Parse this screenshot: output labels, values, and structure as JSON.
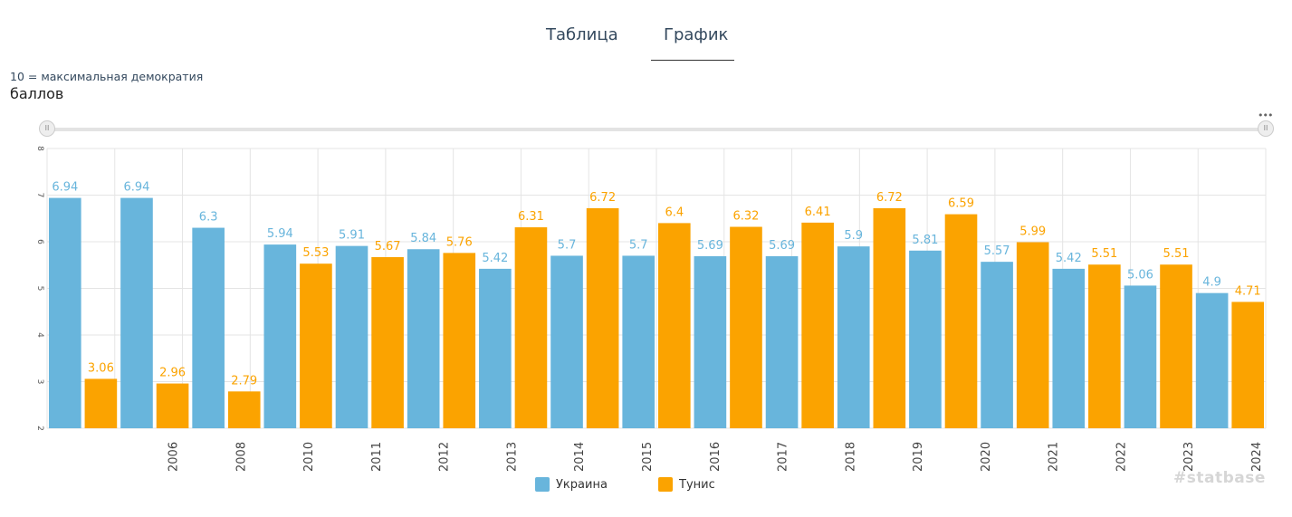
{
  "tabs": {
    "table": "Таблица",
    "chart": "График"
  },
  "chart_meta": {
    "subtitle": "10 = максимальная демократия",
    "unit_label": "баллов"
  },
  "slider": {
    "left_handle": "II",
    "right_handle": "II"
  },
  "menu": {
    "dots": "•••"
  },
  "legend": {
    "ukraine": "Украина",
    "tunisia": "Тунис"
  },
  "watermark": "#statbase",
  "colors": {
    "ukraine": "#68b5dc",
    "tunisia": "#fba300"
  },
  "chart_data": {
    "type": "bar",
    "categories": [
      "",
      "2006",
      "2008",
      "2010",
      "2011",
      "2012",
      "2013",
      "2014",
      "2015",
      "2016",
      "2017",
      "2018",
      "2019",
      "2020",
      "2021",
      "2022",
      "2023",
      "2024"
    ],
    "bars": [
      {
        "series": "Украина",
        "value": 6.94,
        "label": "6.94"
      },
      {
        "series": "Тунис",
        "value": 3.06,
        "label": "3.06"
      },
      {
        "series": "Украина",
        "value": 6.94,
        "label": "6.94"
      },
      {
        "series": "Тунис",
        "value": 2.96,
        "label": "2.96"
      },
      {
        "series": "Украина",
        "value": 6.3,
        "label": "6.3"
      },
      {
        "series": "Тунис",
        "value": 2.79,
        "label": "2.79"
      },
      {
        "series": "Украина",
        "value": 5.94,
        "label": "5.94"
      },
      {
        "series": "Тунис",
        "value": 5.53,
        "label": "5.53"
      },
      {
        "series": "Украина",
        "value": 5.91,
        "label": "5.91"
      },
      {
        "series": "Тунис",
        "value": 5.67,
        "label": "5.67"
      },
      {
        "series": "Украина",
        "value": 5.84,
        "label": "5.84"
      },
      {
        "series": "Тунис",
        "value": 5.76,
        "label": "5.76"
      },
      {
        "series": "Украина",
        "value": 5.42,
        "label": "5.42"
      },
      {
        "series": "Тунис",
        "value": 6.31,
        "label": "6.31"
      },
      {
        "series": "Украина",
        "value": 5.7,
        "label": "5.7"
      },
      {
        "series": "Тунис",
        "value": 6.72,
        "label": "6.72"
      },
      {
        "series": "Украина",
        "value": 5.7,
        "label": "5.7"
      },
      {
        "series": "Тунис",
        "value": 6.4,
        "label": "6.4"
      },
      {
        "series": "Украина",
        "value": 5.69,
        "label": "5.69"
      },
      {
        "series": "Тунис",
        "value": 6.32,
        "label": "6.32"
      },
      {
        "series": "Украина",
        "value": 5.69,
        "label": "5.69"
      },
      {
        "series": "Тунис",
        "value": 6.41,
        "label": "6.41"
      },
      {
        "series": "Украина",
        "value": 5.9,
        "label": "5.9"
      },
      {
        "series": "Тунис",
        "value": 6.72,
        "label": "6.72"
      },
      {
        "series": "Украина",
        "value": 5.81,
        "label": "5.81"
      },
      {
        "series": "Тунис",
        "value": 6.59,
        "label": "6.59"
      },
      {
        "series": "Украина",
        "value": 5.57,
        "label": "5.57"
      },
      {
        "series": "Тунис",
        "value": 5.99,
        "label": "5.99"
      },
      {
        "series": "Украина",
        "value": 5.42,
        "label": "5.42"
      },
      {
        "series": "Тунис",
        "value": 5.51,
        "label": "5.51"
      },
      {
        "series": "Украина",
        "value": 5.06,
        "label": "5.06"
      },
      {
        "series": "Тунис",
        "value": 5.51,
        "label": "5.51"
      },
      {
        "series": "Украина",
        "value": 4.9,
        "label": "4.9"
      },
      {
        "series": "Тунис",
        "value": 4.71,
        "label": "4.71"
      }
    ],
    "yticks": [
      2,
      3,
      4,
      5,
      6,
      7,
      8
    ],
    "ylim": [
      2,
      8
    ],
    "grid": true,
    "legend_position": "bottom-center"
  }
}
